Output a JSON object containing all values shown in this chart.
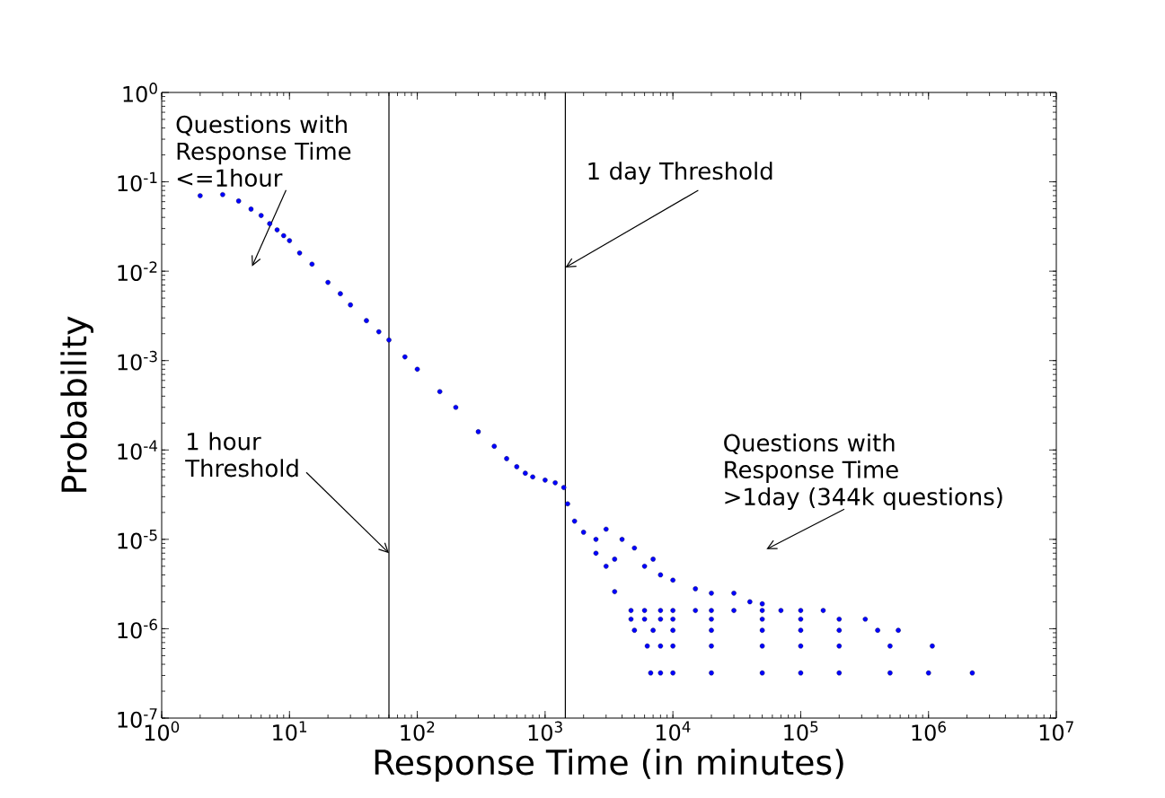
{
  "chart_data": {
    "type": "scatter",
    "xlabel": "Response Time (in minutes)",
    "ylabel": "Probability",
    "log": "xy",
    "marker": "circle",
    "grid": false,
    "xlim": [
      1,
      10000000
    ],
    "ylim": [
      1e-07,
      1
    ],
    "xticks": [
      {
        "value": 1,
        "label": "10$^{0}$"
      },
      {
        "value": 10,
        "label": "10$^{1}$"
      },
      {
        "value": 100,
        "label": "10$^{2}$"
      },
      {
        "value": 1000,
        "label": "10$^{3}$"
      },
      {
        "value": 10000,
        "label": "10$^{4}$"
      },
      {
        "value": 100000,
        "label": "10$^{5}$"
      },
      {
        "value": 1000000,
        "label": "10$^{6}$"
      },
      {
        "value": 10000000,
        "label": "10$^{7}$"
      }
    ],
    "yticks": [
      {
        "value": 1e-07,
        "label": "10$^{-7}$"
      },
      {
        "value": 1e-06,
        "label": "10$^{-6}$"
      },
      {
        "value": 1e-05,
        "label": "10$^{-5}$"
      },
      {
        "value": 0.0001,
        "label": "10$^{-4}$"
      },
      {
        "value": 0.001,
        "label": "10$^{-3}$"
      },
      {
        "value": 0.01,
        "label": "10$^{-2}$"
      },
      {
        "value": 0.1,
        "label": "10$^{-1}$"
      },
      {
        "value": 1,
        "label": "10$^{0}$"
      }
    ],
    "ref_lines": [
      {
        "axis": "x",
        "value": 60,
        "color": "#000000"
      },
      {
        "axis": "x",
        "value": 1440,
        "color": "#000000"
      }
    ],
    "annotations": [
      "Questions with Response Time <=1hour",
      {
        "text": "1 day Threshold",
        "x": 1440,
        "y": 0.011
      },
      {
        "text": "1 hour Threshold",
        "x": 60,
        "y": 7e-06
      },
      "Questions with Response Time",
      ">1day (344k questions)"
    ],
    "series": [
      {
        "color": "#0000ff",
        "x": [
          2,
          3,
          4,
          5,
          6,
          7,
          8,
          9,
          10,
          12,
          15,
          20,
          25,
          30,
          40,
          50,
          60,
          80,
          100,
          150,
          200,
          300,
          400,
          500,
          600,
          700,
          800,
          1000,
          1200,
          1400,
          1500,
          1700,
          2000,
          2500,
          2500,
          3000,
          3000,
          3500,
          3500,
          4000,
          5000,
          6000,
          7000,
          8000,
          10000,
          15000,
          20000,
          30000,
          40000,
          50000,
          4700,
          6000,
          8000,
          10000,
          15000,
          20000,
          30000,
          50000,
          70000,
          100000,
          150000,
          4700,
          6000,
          8000,
          10000,
          20000,
          50000,
          100000,
          200000,
          320000,
          5000,
          7000,
          10000,
          20000,
          50000,
          100000,
          200000,
          400000,
          580000,
          6300,
          8000,
          10000,
          20000,
          50000,
          100000,
          200000,
          500000,
          1070000,
          6700,
          8000,
          10000,
          20000,
          50000,
          100000,
          200000,
          500000,
          1000000,
          2200000
        ],
        "values": [
          0.07,
          0.072,
          0.061,
          0.0495,
          0.042,
          0.034,
          0.029,
          0.025,
          0.022,
          0.016,
          0.012,
          0.0075,
          0.0056,
          0.0042,
          0.0028,
          0.0021,
          0.0017,
          0.0011,
          0.0008,
          0.00045,
          0.0003,
          0.00016,
          0.00011,
          8e-05,
          6.5e-05,
          5.5e-05,
          5e-05,
          4.6e-05,
          4.3e-05,
          3.8e-05,
          2.5e-05,
          1.6e-05,
          1.2e-05,
          1e-05,
          7e-06,
          1.3e-05,
          5e-06,
          6e-06,
          2.6e-06,
          1e-05,
          8e-06,
          5e-06,
          6e-06,
          4e-06,
          3.5e-06,
          2.8e-06,
          2.5e-06,
          2.5e-06,
          2e-06,
          1.9e-06,
          1.6e-06,
          1.6e-06,
          1.6e-06,
          1.6e-06,
          1.6e-06,
          1.6e-06,
          1.6e-06,
          1.6e-06,
          1.6e-06,
          1.6e-06,
          1.6e-06,
          1.28e-06,
          1.28e-06,
          1.28e-06,
          1.28e-06,
          1.28e-06,
          1.28e-06,
          1.28e-06,
          1.28e-06,
          1.28e-06,
          9.6e-07,
          9.6e-07,
          9.6e-07,
          9.6e-07,
          9.6e-07,
          9.6e-07,
          9.6e-07,
          9.6e-07,
          9.6e-07,
          6.4e-07,
          6.4e-07,
          6.4e-07,
          6.4e-07,
          6.4e-07,
          6.4e-07,
          6.4e-07,
          6.4e-07,
          6.4e-07,
          3.2e-07,
          3.2e-07,
          3.2e-07,
          3.2e-07,
          3.2e-07,
          3.2e-07,
          3.2e-07,
          3.2e-07,
          3.2e-07,
          3.2e-07
        ]
      }
    ]
  }
}
